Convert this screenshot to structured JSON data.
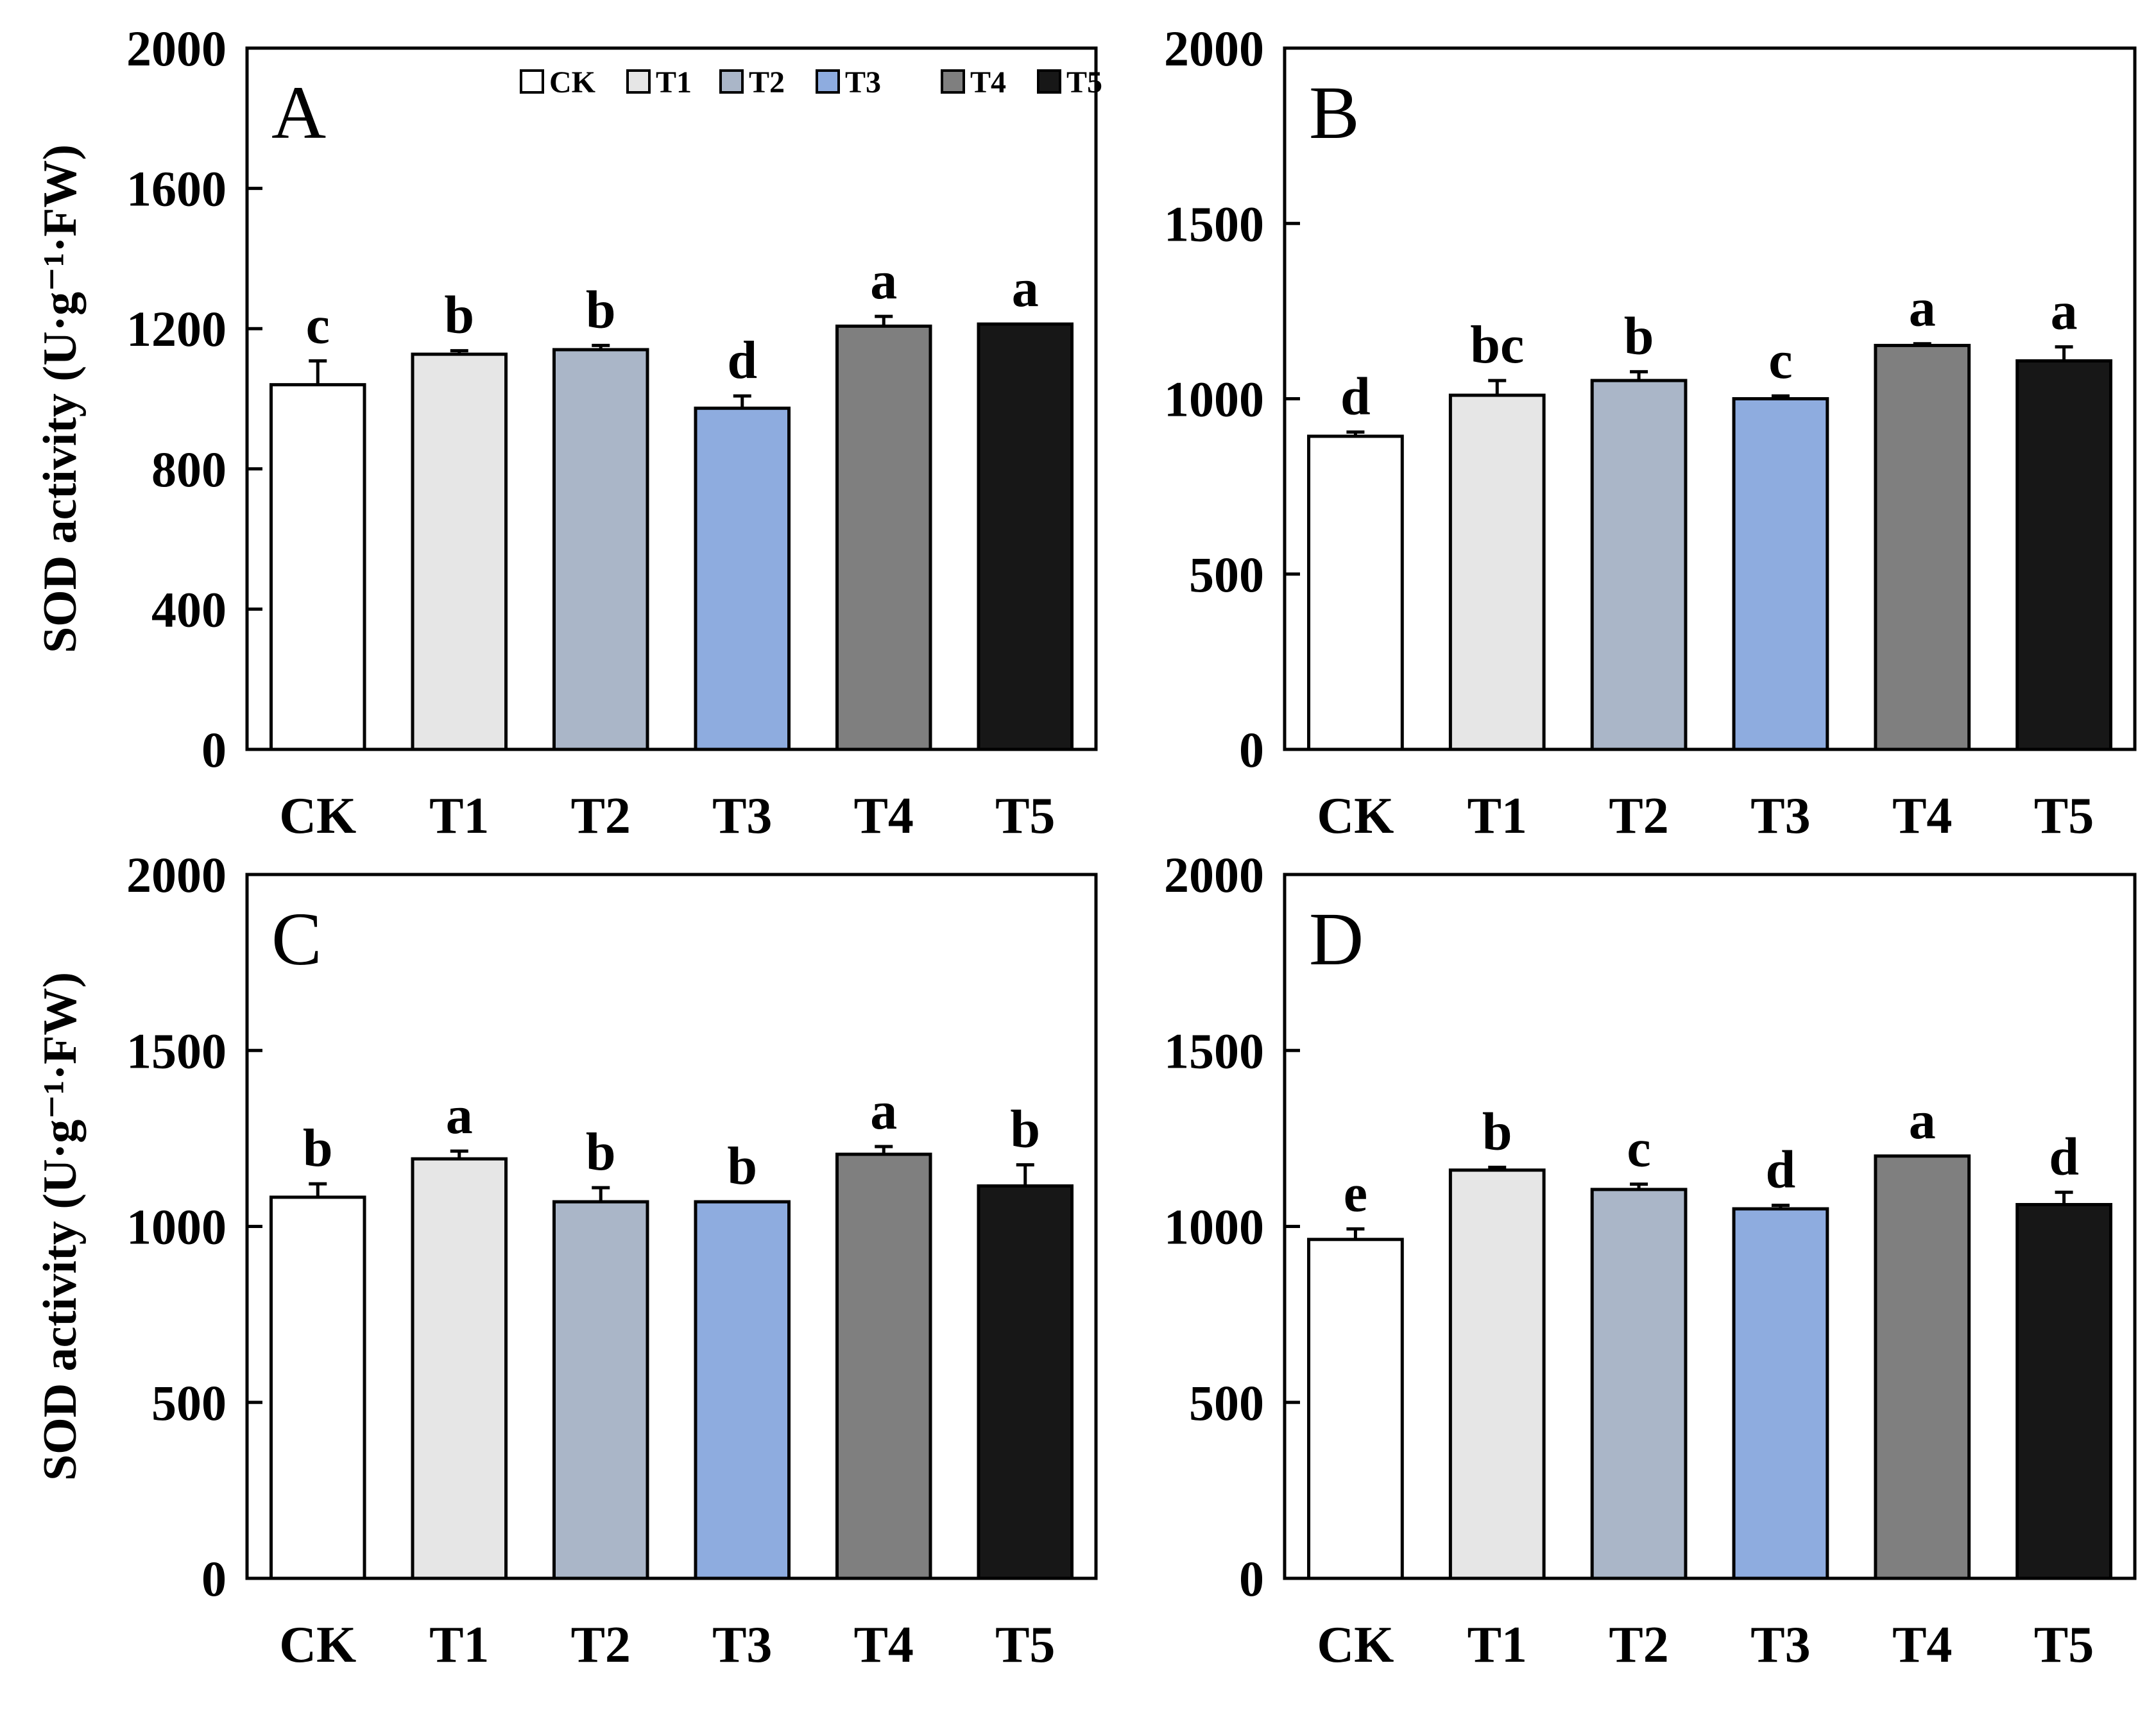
{
  "figure": {
    "ylabel": "SOD activity (U·g⁻¹·FW)",
    "legend": {
      "entries": [
        "CK",
        "T1",
        "T2",
        "T3",
        "T4",
        "T5"
      ],
      "colors": [
        "#ffffff",
        "#e6e6e6",
        "#aab6c8",
        "#8eacdf",
        "#7f7f7f",
        "#171717"
      ]
    }
  },
  "chart_data": [
    {
      "panel": "A",
      "type": "bar",
      "categories": [
        "CK",
        "T1",
        "T2",
        "T3",
        "T4",
        "T5"
      ],
      "values": [
        1040,
        1127,
        1140,
        973,
        1207,
        1213
      ],
      "errors": [
        68,
        10,
        12,
        35,
        28,
        0
      ],
      "significance": [
        "c",
        "b",
        "b",
        "d",
        "a",
        "a"
      ],
      "ylim": [
        0,
        2000
      ],
      "yticks": [
        0,
        400,
        800,
        1200,
        1600,
        2000
      ],
      "ylabel": "SOD activity (U·g⁻¹·FW)",
      "show_legend": true
    },
    {
      "panel": "B",
      "type": "bar",
      "categories": [
        "CK",
        "T1",
        "T2",
        "T3",
        "T4",
        "T5"
      ],
      "values": [
        893,
        1010,
        1052,
        1000,
        1152,
        1108
      ],
      "errors": [
        12,
        42,
        25,
        8,
        5,
        40
      ],
      "significance": [
        "d",
        "bc",
        "b",
        "c",
        "a",
        "a"
      ],
      "ylim": [
        0,
        2000
      ],
      "yticks": [
        0,
        500,
        1000,
        1500,
        2000
      ],
      "ylabel": "",
      "show_legend": false
    },
    {
      "panel": "C",
      "type": "bar",
      "categories": [
        "CK",
        "T1",
        "T2",
        "T3",
        "T4",
        "T5"
      ],
      "values": [
        1083,
        1192,
        1070,
        1070,
        1205,
        1115
      ],
      "errors": [
        38,
        22,
        40,
        0,
        22,
        60
      ],
      "significance": [
        "b",
        "a",
        "b",
        "b",
        "a",
        "b"
      ],
      "ylim": [
        0,
        2000
      ],
      "yticks": [
        0,
        500,
        1000,
        1500,
        2000
      ],
      "ylabel": "SOD activity (U·g⁻¹·FW)",
      "show_legend": false
    },
    {
      "panel": "D",
      "type": "bar",
      "categories": [
        "CK",
        "T1",
        "T2",
        "T3",
        "T4",
        "T5"
      ],
      "values": [
        963,
        1160,
        1105,
        1050,
        1200,
        1062
      ],
      "errors": [
        30,
        8,
        15,
        10,
        0,
        35
      ],
      "significance": [
        "e",
        "b",
        "c",
        "d",
        "a",
        "d"
      ],
      "ylim": [
        0,
        2000
      ],
      "yticks": [
        0,
        500,
        1000,
        1500,
        2000
      ],
      "ylabel": "",
      "show_legend": false
    }
  ]
}
